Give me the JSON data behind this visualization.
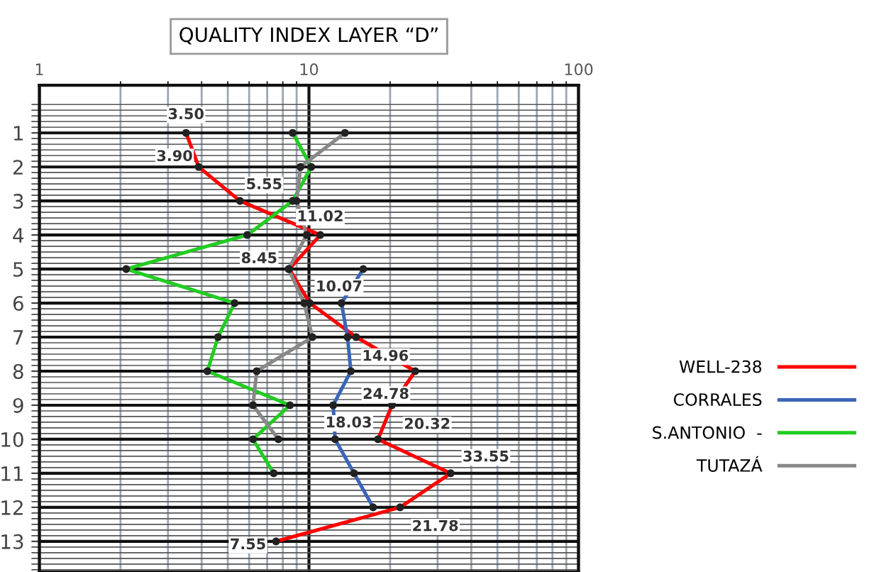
{
  "chart_data": {
    "type": "line",
    "title": "QUALITY INDEX LAYER “D”",
    "orientation": "horizontal",
    "categories": [
      "1",
      "2",
      "3",
      "4",
      "5",
      "6",
      "7",
      "8",
      "9",
      "10",
      "11",
      "12",
      "13"
    ],
    "series": [
      {
        "name": "WELL-238",
        "color": "#ff0000",
        "values": [
          3.5,
          3.9,
          5.55,
          11.02,
          8.45,
          10.07,
          14.96,
          24.78,
          20.32,
          18.03,
          33.55,
          21.78,
          7.55
        ],
        "value_labels": [
          "3.50",
          "3.90",
          "5.55",
          "11.02",
          "8.45",
          "10.07",
          "14.96",
          "24.78",
          "20.32",
          "18.03",
          "33.55",
          "21.78",
          "7.55"
        ]
      },
      {
        "name": "CORRALES",
        "color": "#3a66b8",
        "values": [
          null,
          null,
          null,
          null,
          15.9,
          13.2,
          13.9,
          14.3,
          12.3,
          12.5,
          14.7,
          17.3,
          null
        ]
      },
      {
        "name": "S.ANTONIO  -",
        "color": "#22cc22",
        "values": [
          8.7,
          10.2,
          8.7,
          5.9,
          2.1,
          5.3,
          4.6,
          4.2,
          8.5,
          6.2,
          7.4,
          null,
          null
        ]
      },
      {
        "name": "TUTAZÁ",
        "color": "#888888",
        "values": [
          13.6,
          9.3,
          9.0,
          9.8,
          8.4,
          9.6,
          10.3,
          6.4,
          6.2,
          7.7,
          null,
          null,
          null
        ]
      }
    ],
    "log": "x",
    "xlim": [
      1,
      100
    ],
    "xticks": [
      1,
      10,
      100
    ],
    "grid": true,
    "legend": "right",
    "marker": "circle",
    "line_style": "solid"
  }
}
